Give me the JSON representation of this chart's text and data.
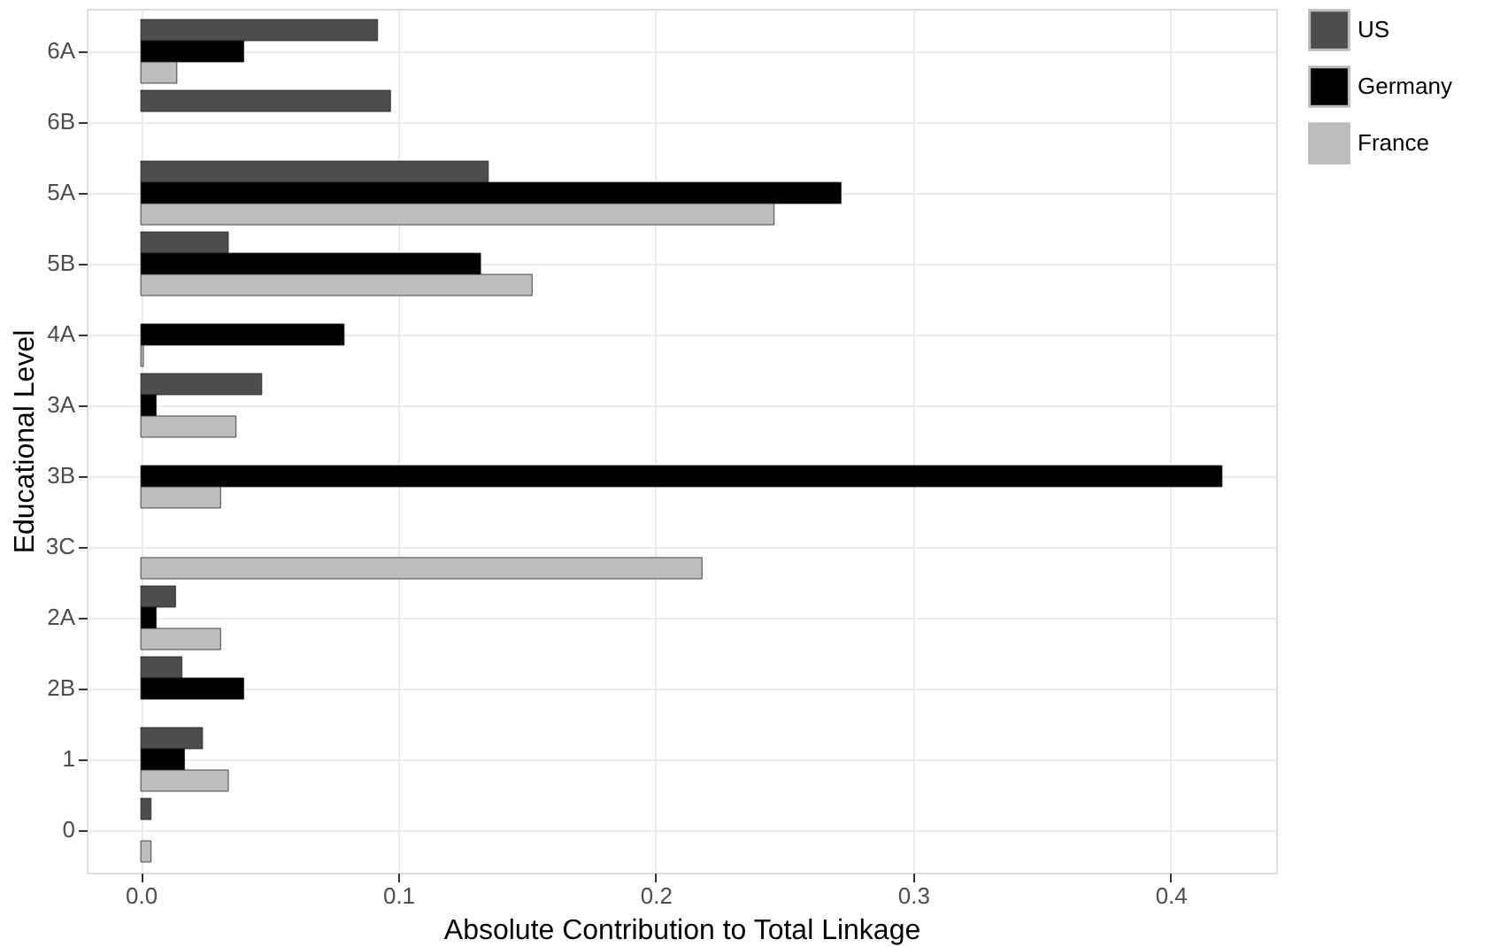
{
  "chart_data": {
    "type": "bar",
    "orientation": "horizontal",
    "xlabel": "Absolute Contribution to Total Linkage",
    "ylabel": "Educational Level",
    "categories": [
      "6A",
      "6B",
      "5A",
      "5B",
      "4A",
      "3A",
      "3B",
      "3C",
      "2A",
      "2B",
      "1",
      "0"
    ],
    "series": [
      {
        "name": "US",
        "color": "#4d4d4d",
        "values": [
          0.092,
          0.097,
          0.135,
          0.034,
          null,
          0.047,
          null,
          null,
          0.0135,
          0.016,
          0.024,
          0.004
        ]
      },
      {
        "name": "Germany",
        "color": "#000000",
        "values": [
          0.04,
          null,
          0.272,
          0.132,
          0.079,
          0.006,
          0.42,
          null,
          0.006,
          0.04,
          0.017,
          null
        ]
      },
      {
        "name": "France",
        "color": "#bdbdbd",
        "values": [
          0.014,
          null,
          0.246,
          0.152,
          0.001,
          0.037,
          0.031,
          0.218,
          0.031,
          null,
          0.034,
          0.004
        ]
      }
    ],
    "xlim": [
      -0.021,
      0.441
    ],
    "xticks": [
      {
        "value": 0,
        "label": "0.0"
      },
      0.1,
      0.2,
      0.3,
      0.4
    ],
    "grid": true,
    "legend": "right"
  }
}
